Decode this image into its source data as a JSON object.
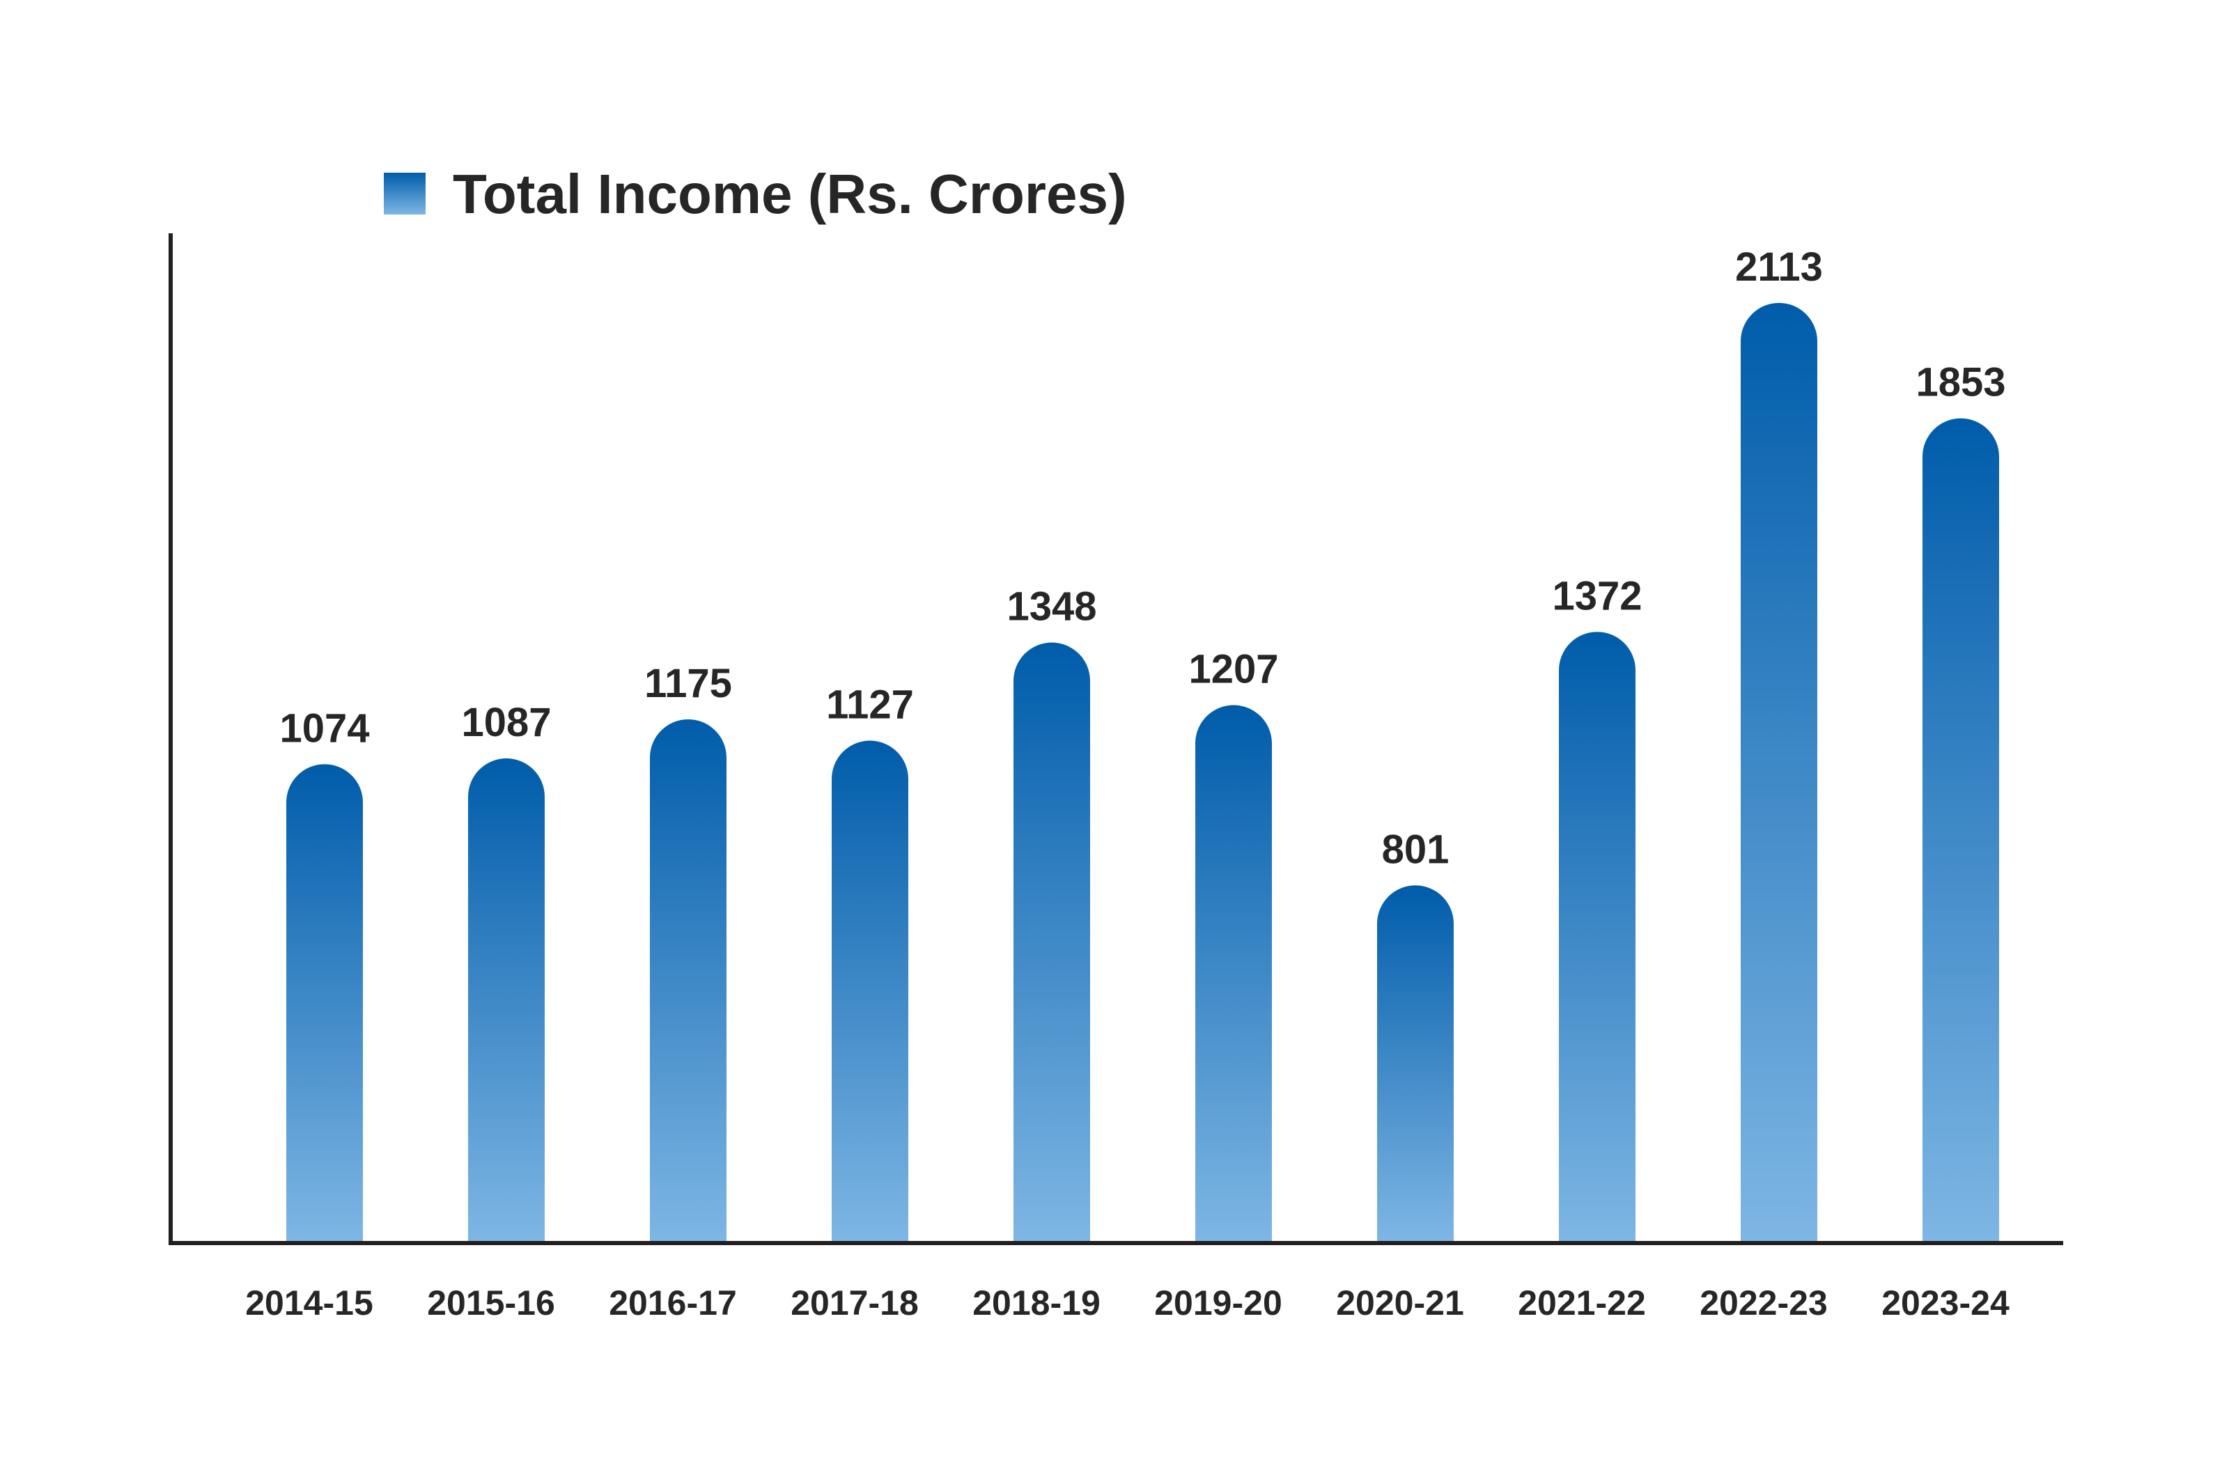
{
  "chart_data": {
    "type": "bar",
    "categories": [
      "2014-15",
      "2015-16",
      "2016-17",
      "2017-18",
      "2018-19",
      "2019-20",
      "2020-21",
      "2021-22",
      "2022-23",
      "2023-24"
    ],
    "series": [
      {
        "name": "Total Income (Rs. Crores)",
        "values": [
          1074,
          1087,
          1175,
          1127,
          1348,
          1207,
          801,
          1372,
          2113,
          1853
        ]
      }
    ],
    "ylim": [
      0,
      2113
    ],
    "grid": false,
    "legend_position": "top-left",
    "data_labels": true,
    "colors": {
      "bar_top": "#005CAA",
      "bar_bottom": "#7EB6E4",
      "axis": "#231F20",
      "text": "#262626"
    }
  }
}
